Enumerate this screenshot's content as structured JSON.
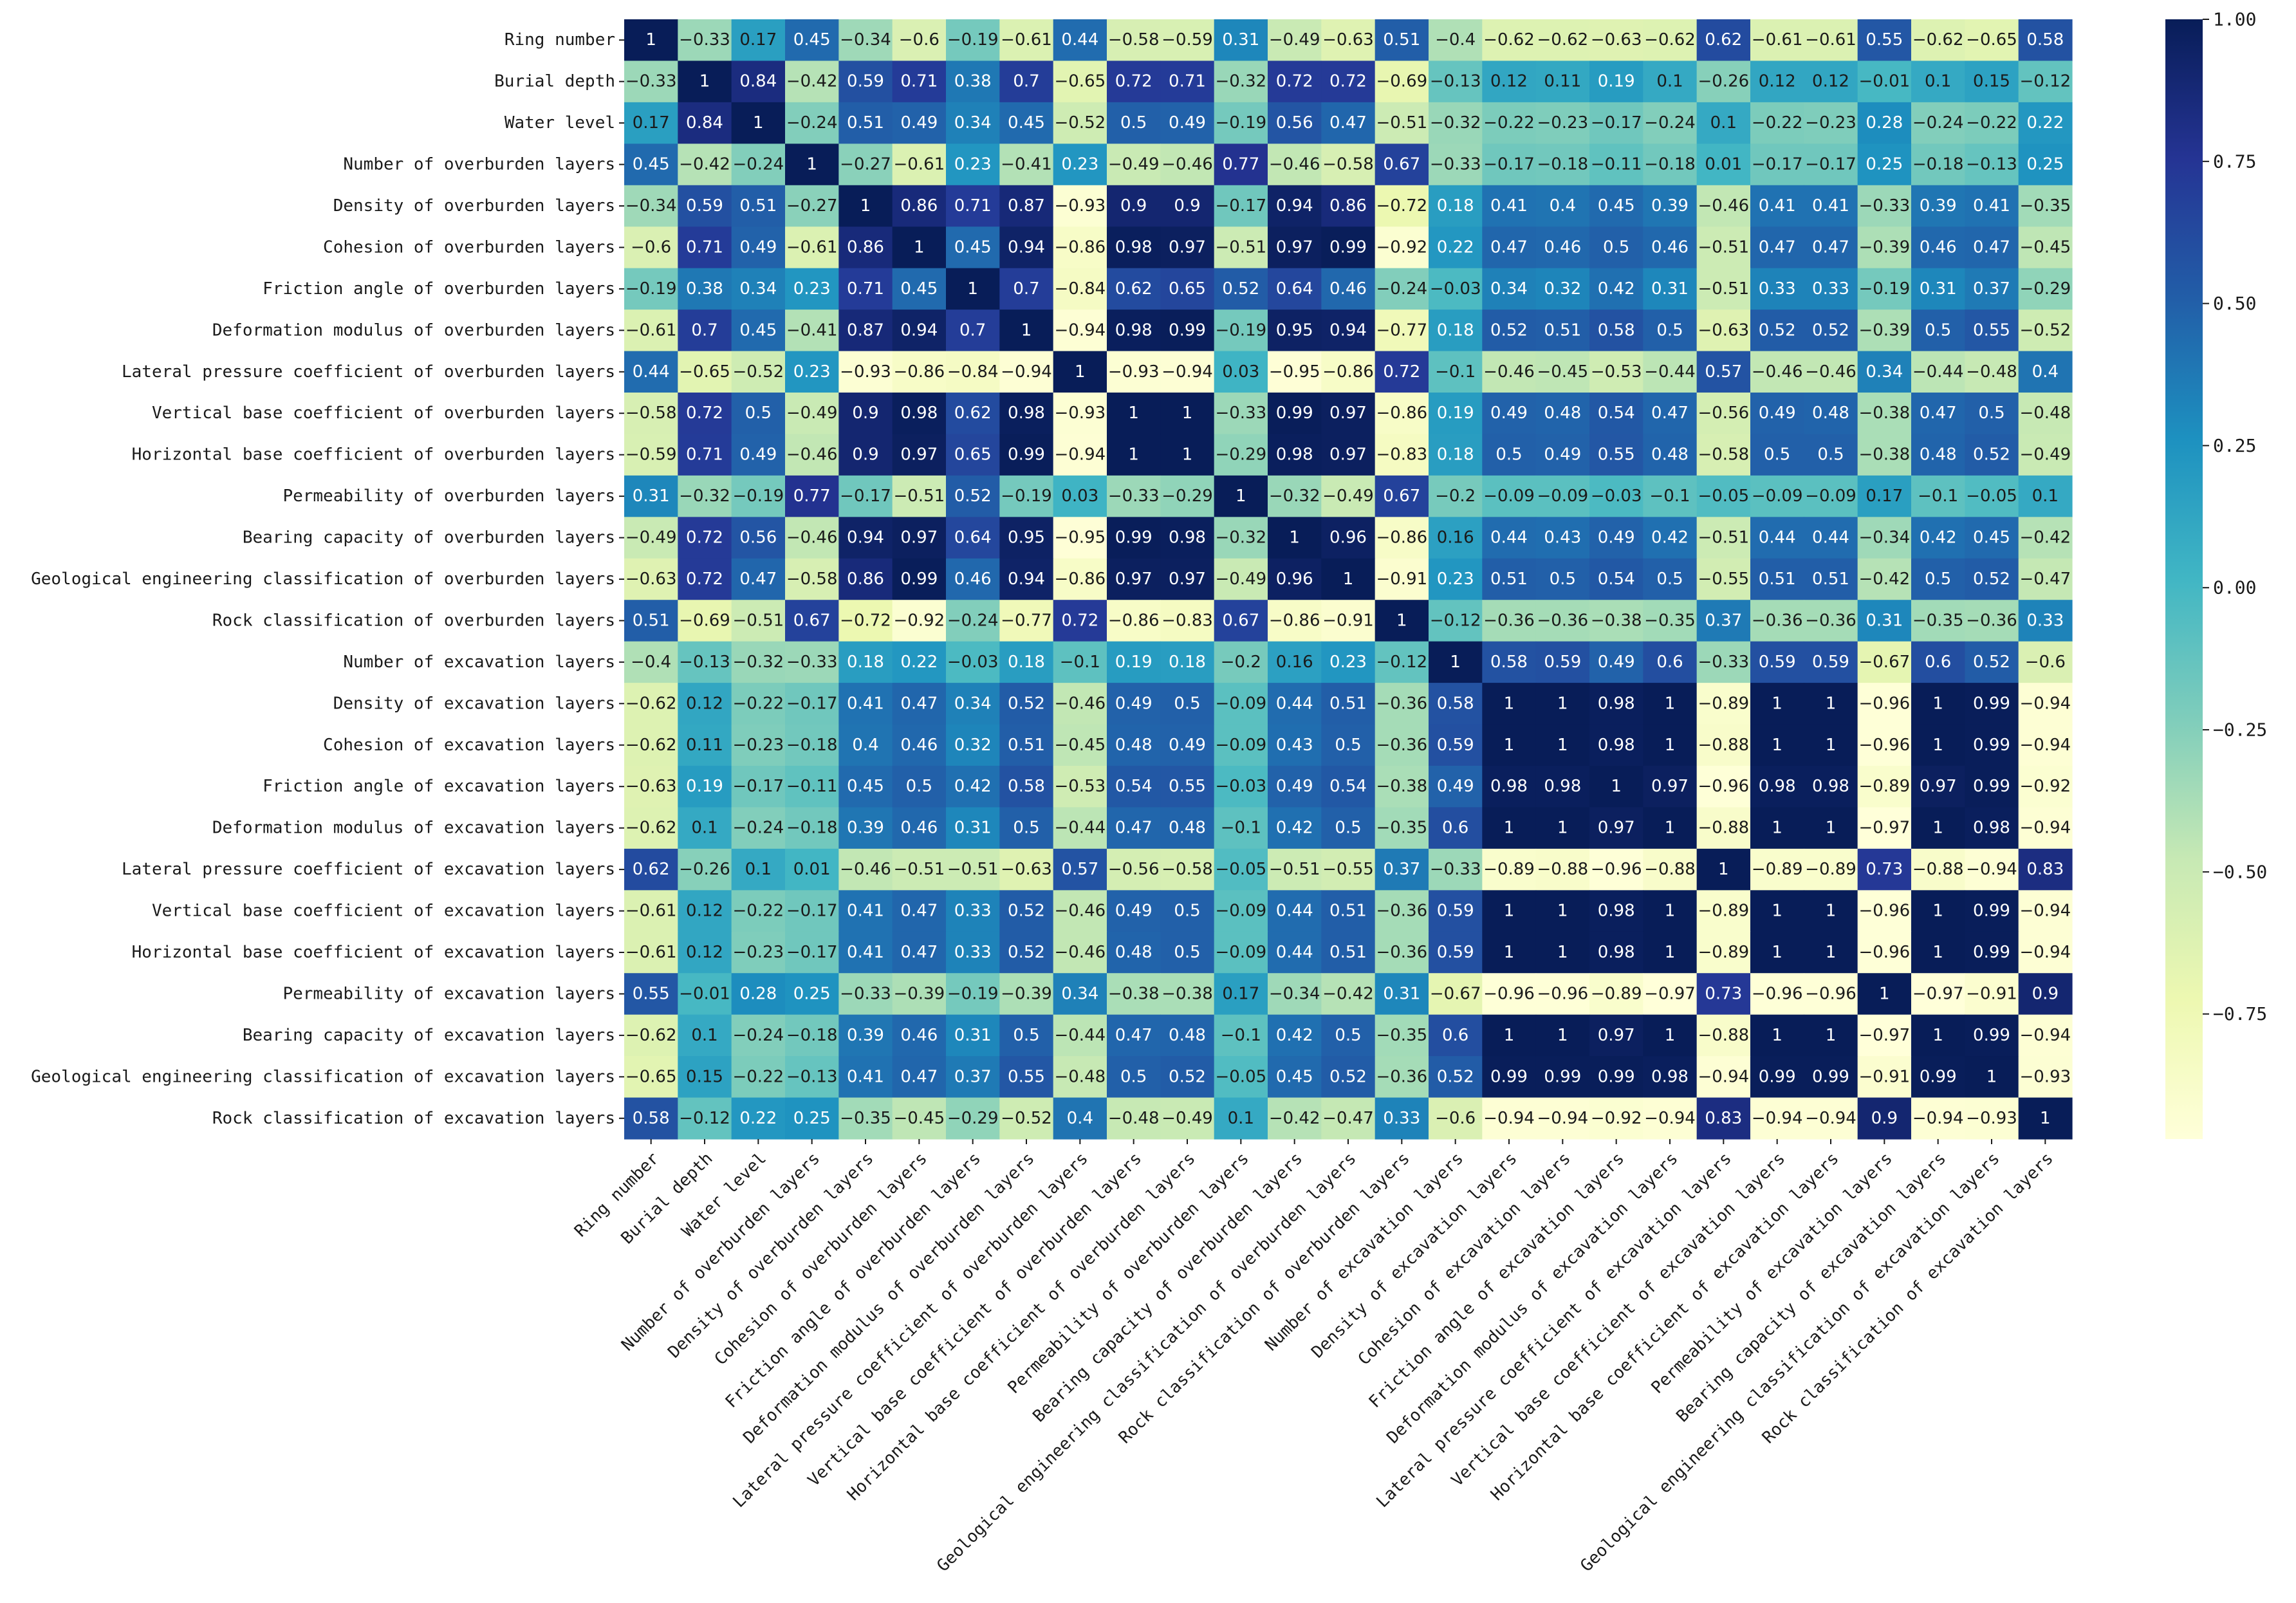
{
  "chart_data": {
    "type": "heatmap",
    "title": "",
    "xlabel": "",
    "ylabel": "",
    "colormap": "YlGnBu",
    "colormap_stops": [
      "#ffffd9",
      "#edf8b1",
      "#c7e9b4",
      "#7fcdbb",
      "#41b6c4",
      "#1d91c0",
      "#225ea8",
      "#253494",
      "#081d58"
    ],
    "vmin": -0.97,
    "vmax": 1.0,
    "colorbar_ticks": [
      1.0,
      0.75,
      0.5,
      0.25,
      0.0,
      -0.25,
      -0.5,
      -0.75
    ],
    "colorbar_tick_labels": [
      "1.00",
      "0.75",
      "0.50",
      "0.25",
      "0.00",
      "−0.25",
      "−0.50",
      "−0.75"
    ],
    "labels": [
      "Ring number",
      "Burial depth",
      "Water level",
      "Number of overburden layers",
      "Density of overburden layers",
      "Cohesion of overburden layers",
      "Friction angle of overburden layers",
      "Deformation modulus of overburden layers",
      "Lateral pressure coefficient of overburden layers",
      "Vertical base coefficient of overburden layers",
      "Horizontal base coefficient of overburden layers",
      "Permeability of overburden layers",
      "Bearing capacity of overburden layers",
      "Geological engineering classification of overburden layers",
      "Rock classification of overburden layers",
      "Number of excavation layers",
      "Density of excavation layers",
      "Cohesion of excavation layers",
      "Friction angle of excavation layers",
      "Deformation modulus of excavation layers",
      "Lateral pressure coefficient of excavation layers",
      "Vertical base coefficient of excavation layers",
      "Horizontal base coefficient of excavation layers",
      "Permeability of excavation layers",
      "Bearing capacity of excavation layers",
      "Geological engineering classification of excavation layers",
      "Rock classification of excavation layers"
    ],
    "matrix": [
      [
        1,
        -0.33,
        0.17,
        0.45,
        -0.34,
        -0.6,
        -0.19,
        -0.61,
        0.44,
        -0.58,
        -0.59,
        0.31,
        -0.49,
        -0.63,
        0.51,
        -0.4,
        -0.62,
        -0.62,
        -0.63,
        -0.62,
        0.62,
        -0.61,
        -0.61,
        0.55,
        -0.62,
        -0.65,
        0.58
      ],
      [
        -0.33,
        1,
        0.84,
        -0.42,
        0.59,
        0.71,
        0.38,
        0.7,
        -0.65,
        0.72,
        0.71,
        -0.32,
        0.72,
        0.72,
        -0.69,
        -0.13,
        0.12,
        0.11,
        0.19,
        0.1,
        -0.26,
        0.12,
        0.12,
        -0.01,
        0.1,
        0.15,
        -0.12
      ],
      [
        0.17,
        0.84,
        1,
        -0.24,
        0.51,
        0.49,
        0.34,
        0.45,
        -0.52,
        0.5,
        0.49,
        -0.19,
        0.56,
        0.47,
        -0.51,
        -0.32,
        -0.22,
        -0.23,
        -0.17,
        -0.24,
        0.1,
        -0.22,
        -0.23,
        0.28,
        -0.24,
        -0.22,
        0.22
      ],
      [
        0.45,
        -0.42,
        -0.24,
        1,
        -0.27,
        -0.61,
        0.23,
        -0.41,
        0.23,
        -0.49,
        -0.46,
        0.77,
        -0.46,
        -0.58,
        0.67,
        -0.33,
        -0.17,
        -0.18,
        -0.11,
        -0.18,
        0.01,
        -0.17,
        -0.17,
        0.25,
        -0.18,
        -0.13,
        0.25
      ],
      [
        -0.34,
        0.59,
        0.51,
        -0.27,
        1,
        0.86,
        0.71,
        0.87,
        -0.93,
        0.9,
        0.9,
        -0.17,
        0.94,
        0.86,
        -0.72,
        0.18,
        0.41,
        0.4,
        0.45,
        0.39,
        -0.46,
        0.41,
        0.41,
        -0.33,
        0.39,
        0.41,
        -0.35
      ],
      [
        -0.6,
        0.71,
        0.49,
        -0.61,
        0.86,
        1,
        0.45,
        0.94,
        -0.86,
        0.98,
        0.97,
        -0.51,
        0.97,
        0.99,
        -0.92,
        0.22,
        0.47,
        0.46,
        0.5,
        0.46,
        -0.51,
        0.47,
        0.47,
        -0.39,
        0.46,
        0.47,
        -0.45
      ],
      [
        -0.19,
        0.38,
        0.34,
        0.23,
        0.71,
        0.45,
        1,
        0.7,
        -0.84,
        0.62,
        0.65,
        0.52,
        0.64,
        0.46,
        -0.24,
        -0.03,
        0.34,
        0.32,
        0.42,
        0.31,
        -0.51,
        0.33,
        0.33,
        -0.19,
        0.31,
        0.37,
        -0.29
      ],
      [
        -0.61,
        0.7,
        0.45,
        -0.41,
        0.87,
        0.94,
        0.7,
        1,
        -0.94,
        0.98,
        0.99,
        -0.19,
        0.95,
        0.94,
        -0.77,
        0.18,
        0.52,
        0.51,
        0.58,
        0.5,
        -0.63,
        0.52,
        0.52,
        -0.39,
        0.5,
        0.55,
        -0.52
      ],
      [
        0.44,
        -0.65,
        -0.52,
        0.23,
        -0.93,
        -0.86,
        -0.84,
        -0.94,
        1,
        -0.93,
        -0.94,
        0.03,
        -0.95,
        -0.86,
        0.72,
        -0.1,
        -0.46,
        -0.45,
        -0.53,
        -0.44,
        0.57,
        -0.46,
        -0.46,
        0.34,
        -0.44,
        -0.48,
        0.4
      ],
      [
        -0.58,
        0.72,
        0.5,
        -0.49,
        0.9,
        0.98,
        0.62,
        0.98,
        -0.93,
        1,
        1,
        -0.33,
        0.99,
        0.97,
        -0.86,
        0.19,
        0.49,
        0.48,
        0.54,
        0.47,
        -0.56,
        0.49,
        0.48,
        -0.38,
        0.47,
        0.5,
        -0.48
      ],
      [
        -0.59,
        0.71,
        0.49,
        -0.46,
        0.9,
        0.97,
        0.65,
        0.99,
        -0.94,
        1,
        1,
        -0.29,
        0.98,
        0.97,
        -0.83,
        0.18,
        0.5,
        0.49,
        0.55,
        0.48,
        -0.58,
        0.5,
        0.5,
        -0.38,
        0.48,
        0.52,
        -0.49
      ],
      [
        0.31,
        -0.32,
        -0.19,
        0.77,
        -0.17,
        -0.51,
        0.52,
        -0.19,
        0.03,
        -0.33,
        -0.29,
        1,
        -0.32,
        -0.49,
        0.67,
        -0.2,
        -0.09,
        -0.09,
        -0.03,
        -0.1,
        -0.05,
        -0.09,
        -0.09,
        0.17,
        -0.1,
        -0.05,
        0.1
      ],
      [
        -0.49,
        0.72,
        0.56,
        -0.46,
        0.94,
        0.97,
        0.64,
        0.95,
        -0.95,
        0.99,
        0.98,
        -0.32,
        1,
        0.96,
        -0.86,
        0.16,
        0.44,
        0.43,
        0.49,
        0.42,
        -0.51,
        0.44,
        0.44,
        -0.34,
        0.42,
        0.45,
        -0.42
      ],
      [
        -0.63,
        0.72,
        0.47,
        -0.58,
        0.86,
        0.99,
        0.46,
        0.94,
        -0.86,
        0.97,
        0.97,
        -0.49,
        0.96,
        1,
        -0.91,
        0.23,
        0.51,
        0.5,
        0.54,
        0.5,
        -0.55,
        0.51,
        0.51,
        -0.42,
        0.5,
        0.52,
        -0.47
      ],
      [
        0.51,
        -0.69,
        -0.51,
        0.67,
        -0.72,
        -0.92,
        -0.24,
        -0.77,
        0.72,
        -0.86,
        -0.83,
        0.67,
        -0.86,
        -0.91,
        1,
        -0.12,
        -0.36,
        -0.36,
        -0.38,
        -0.35,
        0.37,
        -0.36,
        -0.36,
        0.31,
        -0.35,
        -0.36,
        0.33
      ],
      [
        -0.4,
        -0.13,
        -0.32,
        -0.33,
        0.18,
        0.22,
        -0.03,
        0.18,
        -0.1,
        0.19,
        0.18,
        -0.2,
        0.16,
        0.23,
        -0.12,
        1,
        0.58,
        0.59,
        0.49,
        0.6,
        -0.33,
        0.59,
        0.59,
        -0.67,
        0.6,
        0.52,
        -0.6
      ],
      [
        -0.62,
        0.12,
        -0.22,
        -0.17,
        0.41,
        0.47,
        0.34,
        0.52,
        -0.46,
        0.49,
        0.5,
        -0.09,
        0.44,
        0.51,
        -0.36,
        0.58,
        1,
        1,
        0.98,
        1,
        -0.89,
        1,
        1,
        -0.96,
        1,
        0.99,
        -0.94
      ],
      [
        -0.62,
        0.11,
        -0.23,
        -0.18,
        0.4,
        0.46,
        0.32,
        0.51,
        -0.45,
        0.48,
        0.49,
        -0.09,
        0.43,
        0.5,
        -0.36,
        0.59,
        1,
        1,
        0.98,
        1,
        -0.88,
        1,
        1,
        -0.96,
        1,
        0.99,
        -0.94
      ],
      [
        -0.63,
        0.19,
        -0.17,
        -0.11,
        0.45,
        0.5,
        0.42,
        0.58,
        -0.53,
        0.54,
        0.55,
        -0.03,
        0.49,
        0.54,
        -0.38,
        0.49,
        0.98,
        0.98,
        1,
        0.97,
        -0.96,
        0.98,
        0.98,
        -0.89,
        0.97,
        0.99,
        -0.92
      ],
      [
        -0.62,
        0.1,
        -0.24,
        -0.18,
        0.39,
        0.46,
        0.31,
        0.5,
        -0.44,
        0.47,
        0.48,
        -0.1,
        0.42,
        0.5,
        -0.35,
        0.6,
        1,
        1,
        0.97,
        1,
        -0.88,
        1,
        1,
        -0.97,
        1,
        0.98,
        -0.94
      ],
      [
        0.62,
        -0.26,
        0.1,
        0.01,
        -0.46,
        -0.51,
        -0.51,
        -0.63,
        0.57,
        -0.56,
        -0.58,
        -0.05,
        -0.51,
        -0.55,
        0.37,
        -0.33,
        -0.89,
        -0.88,
        -0.96,
        -0.88,
        1,
        -0.89,
        -0.89,
        0.73,
        -0.88,
        -0.94,
        0.83
      ],
      [
        -0.61,
        0.12,
        -0.22,
        -0.17,
        0.41,
        0.47,
        0.33,
        0.52,
        -0.46,
        0.49,
        0.5,
        -0.09,
        0.44,
        0.51,
        -0.36,
        0.59,
        1,
        1,
        0.98,
        1,
        -0.89,
        1,
        1,
        -0.96,
        1,
        0.99,
        -0.94
      ],
      [
        -0.61,
        0.12,
        -0.23,
        -0.17,
        0.41,
        0.47,
        0.33,
        0.52,
        -0.46,
        0.48,
        0.5,
        -0.09,
        0.44,
        0.51,
        -0.36,
        0.59,
        1,
        1,
        0.98,
        1,
        -0.89,
        1,
        1,
        -0.96,
        1,
        0.99,
        -0.94
      ],
      [
        0.55,
        -0.01,
        0.28,
        0.25,
        -0.33,
        -0.39,
        -0.19,
        -0.39,
        0.34,
        -0.38,
        -0.38,
        0.17,
        -0.34,
        -0.42,
        0.31,
        -0.67,
        -0.96,
        -0.96,
        -0.89,
        -0.97,
        0.73,
        -0.96,
        -0.96,
        1,
        -0.97,
        -0.91,
        0.9
      ],
      [
        -0.62,
        0.1,
        -0.24,
        -0.18,
        0.39,
        0.46,
        0.31,
        0.5,
        -0.44,
        0.47,
        0.48,
        -0.1,
        0.42,
        0.5,
        -0.35,
        0.6,
        1,
        1,
        0.97,
        1,
        -0.88,
        1,
        1,
        -0.97,
        1,
        0.99,
        -0.94
      ],
      [
        -0.65,
        0.15,
        -0.22,
        -0.13,
        0.41,
        0.47,
        0.37,
        0.55,
        -0.48,
        0.5,
        0.52,
        -0.05,
        0.45,
        0.52,
        -0.36,
        0.52,
        0.99,
        0.99,
        0.99,
        0.98,
        -0.94,
        0.99,
        0.99,
        -0.91,
        0.99,
        1,
        -0.93
      ],
      [
        0.58,
        -0.12,
        0.22,
        0.25,
        -0.35,
        -0.45,
        -0.29,
        -0.52,
        0.4,
        -0.48,
        -0.49,
        0.1,
        -0.42,
        -0.47,
        0.33,
        -0.6,
        -0.94,
        -0.94,
        -0.92,
        -0.94,
        0.83,
        -0.94,
        -0.94,
        0.9,
        -0.94,
        -0.93,
        1
      ]
    ]
  }
}
